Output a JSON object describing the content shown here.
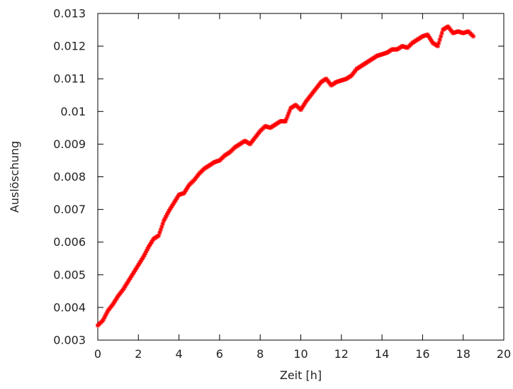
{
  "chart_data": {
    "type": "scatter",
    "title": "",
    "xlabel": "Zeit [h]",
    "ylabel": "Auslöschung",
    "xlim": [
      0,
      20
    ],
    "ylim": [
      0.003,
      0.013
    ],
    "x_ticks": [
      "0",
      "2",
      "4",
      "6",
      "8",
      "10",
      "12",
      "14",
      "16",
      "18",
      "20"
    ],
    "y_ticks": [
      "0.003",
      "0.004",
      "0.005",
      "0.006",
      "0.007",
      "0.008",
      "0.009",
      "0.01",
      "0.011",
      "0.012",
      "0.013"
    ],
    "grid": false,
    "marker": "star",
    "series_color": "#ff0000",
    "series": [
      {
        "x": [
          0,
          0.25,
          0.5,
          0.75,
          1.0,
          1.25,
          1.5,
          1.75,
          2.0,
          2.25,
          2.5,
          2.75,
          3.0,
          3.25,
          3.5,
          3.75,
          4.0,
          4.25,
          4.5,
          4.75,
          5.0,
          5.25,
          5.5,
          5.75,
          6.0,
          6.25,
          6.5,
          6.75,
          7.0,
          7.25,
          7.5,
          7.75,
          8.0,
          8.25,
          8.5,
          8.75,
          9.0,
          9.25,
          9.5,
          9.75,
          10.0,
          10.25,
          10.5,
          10.75,
          11.0,
          11.25,
          11.5,
          11.75,
          12.0,
          12.25,
          12.5,
          12.75,
          13.0,
          13.25,
          13.5,
          13.75,
          14.0,
          14.25,
          14.5,
          14.75,
          15.0,
          15.25,
          15.5,
          15.75,
          16.0,
          16.25,
          16.5,
          16.75,
          17.0,
          17.25,
          17.5,
          17.75,
          18.0,
          18.25,
          18.5
        ],
        "y": [
          0.00345,
          0.0036,
          0.0039,
          0.0041,
          0.00435,
          0.00455,
          0.0048,
          0.00505,
          0.0053,
          0.00555,
          0.00585,
          0.0061,
          0.0062,
          0.00665,
          0.00695,
          0.0072,
          0.00745,
          0.0075,
          0.00775,
          0.0079,
          0.0081,
          0.00825,
          0.00835,
          0.00845,
          0.0085,
          0.00865,
          0.00875,
          0.0089,
          0.009,
          0.0091,
          0.009,
          0.0092,
          0.0094,
          0.00955,
          0.0095,
          0.0096,
          0.0097,
          0.0097,
          0.0101,
          0.0102,
          0.01005,
          0.0103,
          0.0105,
          0.0107,
          0.0109,
          0.011,
          0.0108,
          0.0109,
          0.01095,
          0.011,
          0.0111,
          0.0113,
          0.0114,
          0.0115,
          0.0116,
          0.0117,
          0.01175,
          0.0118,
          0.0119,
          0.0119,
          0.012,
          0.01195,
          0.0121,
          0.0122,
          0.0123,
          0.01235,
          0.0121,
          0.012,
          0.0125,
          0.0126,
          0.0124,
          0.01245,
          0.0124,
          0.01245,
          0.0123
        ]
      }
    ]
  }
}
